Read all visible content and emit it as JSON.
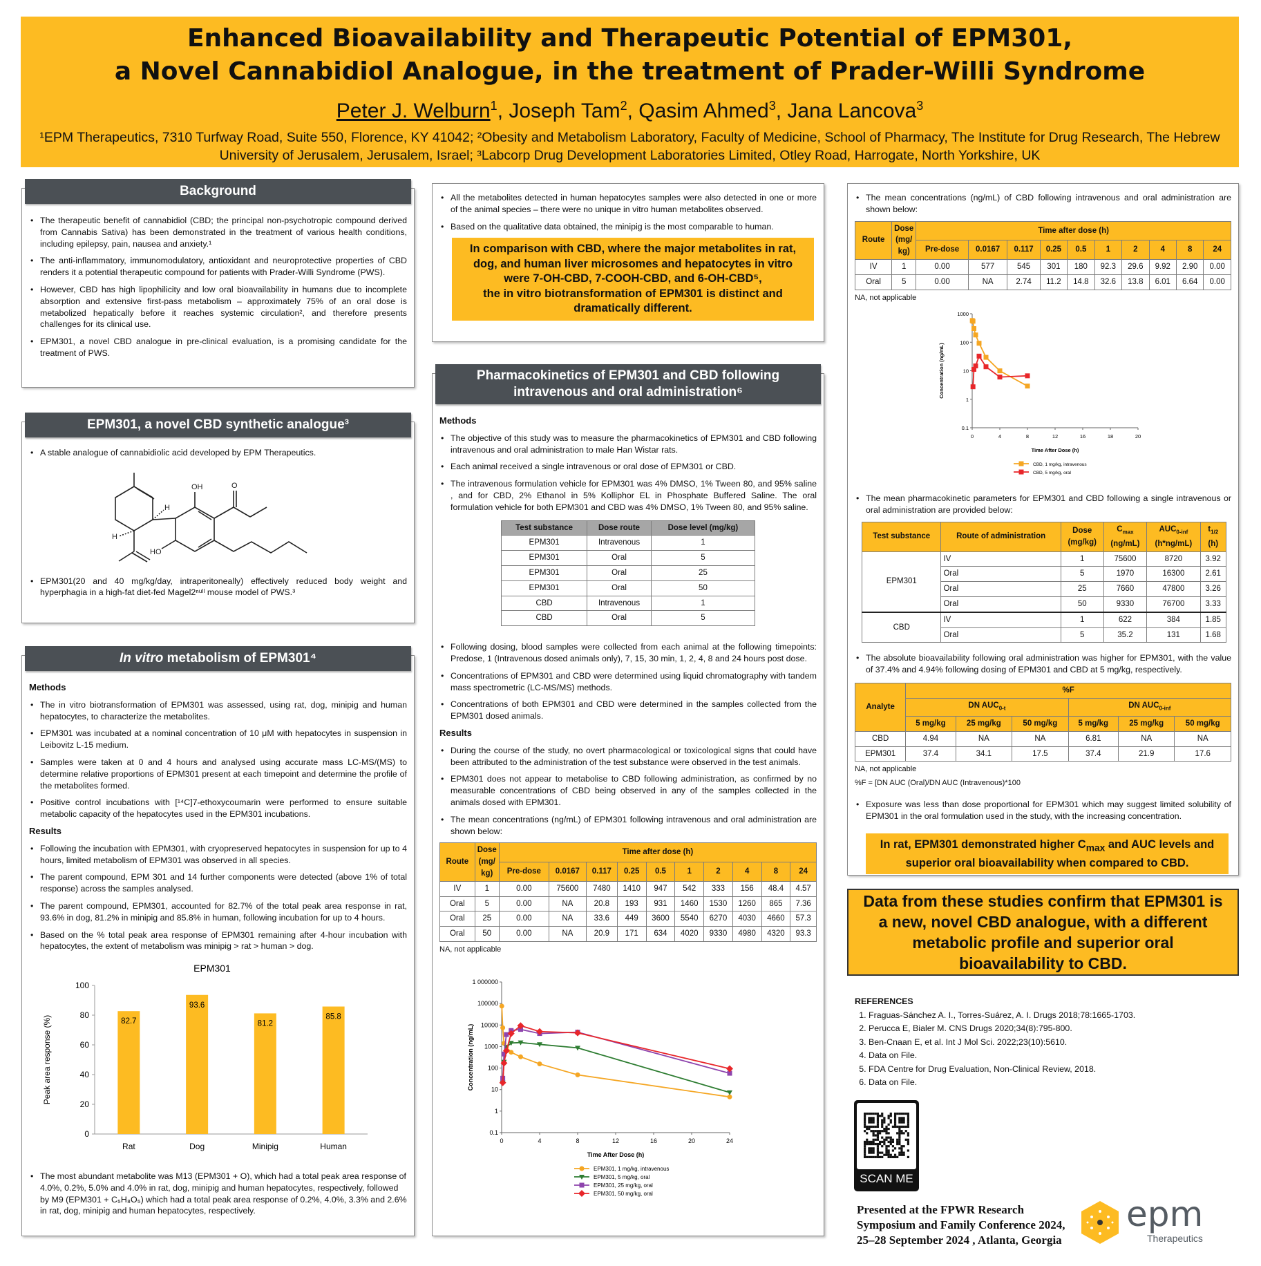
{
  "header": {
    "title_line1": "Enhanced Bioavailability and Therapeutic Potential of EPM301,",
    "title_line2": "a Novel Cannabidiol Analogue, in the treatment of Prader-Willi Syndrome",
    "authors": [
      {
        "name": "Peter J. Welburn",
        "sup": "1"
      },
      {
        "name": "Joseph Tam",
        "sup": "2"
      },
      {
        "name": "Qasim Ahmed",
        "sup": "3"
      },
      {
        "name": "Jana Lancova",
        "sup": "3"
      }
    ],
    "affiliations": "¹EPM Therapeutics, 7310 Turfway Road, Suite 550, Florence, KY 41042; ²Obesity and Metabolism Laboratory, Faculty of Medicine, School of Pharmacy, The Institute for Drug Research, The Hebrew University of Jerusalem, Jerusalem, Israel; ³Labcorp Drug Development Laboratories Limited, Otley Road, Harrogate, North Yorkshire, UK"
  },
  "background": {
    "heading": "Background",
    "bullets": [
      "The therapeutic benefit of cannabidiol (CBD; the principal non-psychotropic compound derived from Cannabis Sativa) has been demonstrated in the treatment of various health conditions, including epilepsy, pain, nausea and anxiety.¹",
      "The anti-inflammatory, immunomodulatory, antioxidant and neuroprotective properties of CBD renders it a potential therapeutic compound for patients with Prader-Willi Syndrome (PWS).",
      "However, CBD has high lipophilicity and low oral bioavailability in humans due to incomplete absorption and extensive first-pass metabolism – approximately 75% of an oral dose is metabolized hepatically before it reaches systemic circulation², and therefore presents challenges for its clinical use.",
      "EPM301, a novel CBD analogue in pre-clinical evaluation, is a promising candidate for the treatment of PWS."
    ]
  },
  "analogue": {
    "heading": "EPM301, a novel CBD synthetic analogue³",
    "bullet1": "A stable analogue of cannabidiolic acid developed by EPM Therapeutics.",
    "bullet2": "EPM301(20 and 40 mg/kg/day, intraperitoneally) effectively reduced body weight and hyperphagia in a high-fat diet-fed Magel2ⁿᵘˡˡ mouse model of PWS.³",
    "structure_labels": {
      "oh": "OH",
      "ho": "HO",
      "h1": "H",
      "h2": "H",
      "o": "O"
    }
  },
  "invitro": {
    "heading_italic": "In vitro",
    "heading_rest": " metabolism of EPM301⁴",
    "methods_label": "Methods",
    "methods": [
      "The in vitro biotransformation of EPM301 was assessed, using rat, dog, minipig and human hepatocytes, to characterize the metabolites.",
      "EPM301 was incubated at a nominal concentration of 10 μM with hepatocytes in suspension in Leibovitz L-15 medium.",
      "Samples were taken at 0 and 4 hours and analysed using accurate mass LC-MS/(MS) to determine relative proportions of EPM301 present at each timepoint and determine the profile of the metabolites formed.",
      "Positive control incubations with [¹⁴C]7-ethoxycoumarin were performed to ensure suitable metabolic capacity of the hepatocytes used in the EPM301 incubations."
    ],
    "results_label": "Results",
    "results": [
      "Following the incubation with EPM301, with cryopreserved hepatocytes in suspension for up to 4 hours, limited metabolism of EPM301 was observed in all species.",
      "The parent compound, EPM 301 and 14 further components were detected (above 1% of total response) across the samples analysed.",
      "The parent compound, EPM301, accounted for 82.7% of the total peak area response in rat, 93.6% in dog, 81.2% in minipig and 85.8% in human, following incubation for up to 4 hours.",
      "Based on the % total peak area response of EPM301 remaining after 4-hour incubation with hepatocytes, the extent of metabolism was minipig > rat > human > dog."
    ],
    "after_chart": "The most abundant metabolite was M13 (EPM301 + O), which had a total peak area response of 4.0%, 0.2%, 5.0% and 4.0% in rat, dog, minipig and human hepatocytes, respectively, followed by M9 (EPM301 + C₅H₈O₅) which had a total peak area response of 0.2%, 4.0%, 3.3% and 2.6% in rat, dog, minipig and human hepatocytes, respectively."
  },
  "middle_top": {
    "bullets": [
      "All the metabolites detected in human hepatocytes samples were also detected in one or more of the animal species – there were no unique in vitro human metabolites observed.",
      "Based on the qualitative data obtained, the minipig is the most comparable to human."
    ],
    "callout": [
      "In comparison with CBD, where the major metabolites in rat,",
      "dog, and human liver microsomes and hepatocytes in vitro",
      "were 7-OH-CBD, 7-COOH-CBD, and 6-OH-CBD⁵,",
      "the in vitro biotransformation of EPM301 is distinct and",
      "dramatically different."
    ]
  },
  "pk": {
    "heading_line1": "Pharmacokinetics of EPM301 and CBD following",
    "heading_line2": "intravenous and oral administration⁶",
    "methods_label": "Methods",
    "methods": [
      "The objective of this study was to measure the pharmacokinetics of EPM301 and CBD following intravenous and oral administration to male Han Wistar rats.",
      "Each animal received a single intravenous or oral dose of EPM301 or CBD.",
      "The intravenous formulation vehicle for EPM301 was 4% DMSO, 1% Tween 80, and 95% saline , and for CBD, 2% Ethanol in 5% Kolliphor EL in Phosphate Buffered Saline. The oral formulation vehicle for both EPM301 and CBD was 4% DMSO, 1% Tween 80, and 95% saline."
    ],
    "dose_table": {
      "headers": [
        "Test substance",
        "Dose route",
        "Dose level (mg/kg)"
      ],
      "rows": [
        [
          "EPM301",
          "Intravenous",
          "1"
        ],
        [
          "EPM301",
          "Oral",
          "5"
        ],
        [
          "EPM301",
          "Oral",
          "25"
        ],
        [
          "EPM301",
          "Oral",
          "50"
        ],
        [
          "CBD",
          "Intravenous",
          "1"
        ],
        [
          "CBD",
          "Oral",
          "5"
        ]
      ]
    },
    "methods2": [
      "Following dosing, blood samples were collected from each animal at the following timepoints: Predose, 1 (Intravenous dosed animals only), 7, 15, 30 min, 1, 2, 4, 8 and 24 hours post dose.",
      "Concentrations of EPM301 and CBD were determined using liquid chromatography with tandem mass spectrometric (LC-MS/MS) methods.",
      "Concentrations of both EPM301 and CBD were determined in the samples collected from the EPM301 dosed animals."
    ],
    "results_label": "Results",
    "results": [
      "During the course of the study, no overt pharmacological or toxicological signs that could have been attributed to the administration of the test substance were observed in the test animals.",
      "EPM301 does not appear to metabolise to CBD following administration, as confirmed by no measurable concentrations of CBD being observed in any of the samples collected in the animals dosed with EPM301.",
      "The mean concentrations (ng/mL) of EPM301 following intravenous and oral administration are shown below:"
    ],
    "epm_conc_table": {
      "h_route": "Route",
      "h_dose": "Dose (mg/ kg)",
      "h_time": "Time after dose (h)",
      "times": [
        "Pre-dose",
        "0.0167",
        "0.117",
        "0.25",
        "0.5",
        "1",
        "2",
        "4",
        "8",
        "24"
      ],
      "rows": [
        [
          "IV",
          "1",
          "0.00",
          "75600",
          "7480",
          "1410",
          "947",
          "542",
          "333",
          "156",
          "48.4",
          "4.57"
        ],
        [
          "Oral",
          "5",
          "0.00",
          "NA",
          "20.8",
          "193",
          "931",
          "1460",
          "1530",
          "1260",
          "865",
          "7.36"
        ],
        [
          "Oral",
          "25",
          "0.00",
          "NA",
          "33.6",
          "449",
          "3600",
          "5540",
          "6270",
          "4030",
          "4660",
          "57.3"
        ],
        [
          "Oral",
          "50",
          "0.00",
          "NA",
          "20.9",
          "171",
          "634",
          "4020",
          "9330",
          "4980",
          "4320",
          "93.3"
        ]
      ],
      "note": "NA, not applicable"
    }
  },
  "right": {
    "intro": "The mean concentrations (ng/mL) of CBD following intravenous and oral administration are shown below:",
    "cbd_conc_table": {
      "h_route": "Route",
      "h_dose": "Dose (mg/ kg)",
      "h_time": "Time after dose (h)",
      "times": [
        "Pre-dose",
        "0.0167",
        "0.117",
        "0.25",
        "0.5",
        "1",
        "2",
        "4",
        "8",
        "24"
      ],
      "rows": [
        [
          "IV",
          "1",
          "0.00",
          "577",
          "545",
          "301",
          "180",
          "92.3",
          "29.6",
          "9.92",
          "2.90",
          "0.00"
        ],
        [
          "Oral",
          "5",
          "0.00",
          "NA",
          "2.74",
          "11.2",
          "14.8",
          "32.6",
          "13.8",
          "6.01",
          "6.64",
          "0.00"
        ]
      ],
      "note": "NA, not applicable"
    },
    "param_intro": "The mean pharmacokinetic parameters for EPM301 and CBD following a single intravenous or oral administration are provided below:",
    "param_table": {
      "headers": [
        {
          "t": "Test substance"
        },
        {
          "t": "Route of administration"
        },
        {
          "t": "Dose",
          "u": "(mg/kg)"
        },
        {
          "t": "C",
          "sub": "max",
          "u": "(ng/mL)"
        },
        {
          "t": "AUC",
          "sub": "0-inf",
          "u": "(h*ng/mL)"
        },
        {
          "t": "t",
          "sub": "1/2",
          "u": "(h)"
        }
      ],
      "groups": [
        {
          "substance": "EPM301",
          "rows": [
            [
              "IV",
              "1",
              "75600",
              "8720",
              "3.92"
            ],
            [
              "Oral",
              "5",
              "1970",
              "16300",
              "2.61"
            ],
            [
              "Oral",
              "25",
              "7660",
              "47800",
              "3.26"
            ],
            [
              "Oral",
              "50",
              "9330",
              "76700",
              "3.33"
            ]
          ]
        },
        {
          "substance": "CBD",
          "rows": [
            [
              "IV",
              "1",
              "622",
              "384",
              "1.85"
            ],
            [
              "Oral",
              "5",
              "35.2",
              "131",
              "1.68"
            ]
          ]
        }
      ]
    },
    "bioavail_text": "The absolute bioavailability following oral administration was higher for EPM301, with the value of 37.4% and 4.94% following dosing of EPM301 and CBD at 5 mg/kg, respectively.",
    "f_table": {
      "h_analyte": "Analyte",
      "h_f": "%F",
      "h_dn_t": "DN AUC",
      "h_dn_t_sub": "0-t",
      "h_dn_inf": "DN AUC",
      "h_dn_inf_sub": "0-inf",
      "doses": [
        "5 mg/kg",
        "25 mg/kg",
        "50 mg/kg",
        "5 mg/kg",
        "25 mg/kg",
        "50 mg/kg"
      ],
      "rows": [
        [
          "CBD",
          "4.94",
          "NA",
          "NA",
          "6.81",
          "NA",
          "NA"
        ],
        [
          "EPM301",
          "37.4",
          "34.1",
          "17.5",
          "37.4",
          "21.9",
          "17.6"
        ]
      ],
      "note1": "NA, not applicable",
      "note2": "%F = [DN AUC (Oral)/DN AUC (Intravenous)*100"
    },
    "exposure_text": "Exposure was less than dose proportional for EPM301 which may suggest limited solubility of EPM301 in the oral formulation used in the study, with the increasing concentration.",
    "callout_a": "In rat, EPM301 demonstrated higher C",
    "callout_sub": "max",
    "callout_b": " and AUC levels and superior oral bioavailability when compared to CBD."
  },
  "conclusion": "Data from these studies confirm that EPM301 is a new, novel CBD analogue, with a different metabolic profile and superior oral bioavailability to CBD.",
  "references": {
    "heading": "REFERENCES",
    "items": [
      "Fraguas-Sánchez A. I., Torres-Suárez, A. I. Drugs 2018;78:1665-1703.",
      "Perucca E, Bialer M. CNS Drugs 2020;34(8):795-800.",
      "Ben-Cnaan E, et al. Int J Mol Sci. 2022;23(10):5610.",
      "Data on File.",
      "FDA Centre for Drug Evaluation, Non-Clinical Review, 2018.",
      "Data on File."
    ]
  },
  "qr": {
    "label": "SCAN ME"
  },
  "presented": [
    "Presented at the FPWR Research",
    "Symposium and Family Conference 2024,",
    "25–28 September 2024 , Atlanta, Georgia"
  ],
  "logo": {
    "word": "epm",
    "sub": "Therapeutics"
  },
  "colors": {
    "accent": "#fdbb22",
    "section_header": "#4b5055",
    "iv": "#f5a623",
    "oral5": "#2e7d32",
    "oral25": "#8e44ad",
    "oral50": "#e8262a",
    "cbd_oral": "#e8262a"
  },
  "chart_data": [
    {
      "type": "bar",
      "title": "EPM301",
      "categories": [
        "Rat",
        "Dog",
        "Minipig",
        "Human"
      ],
      "values": [
        82.7,
        93.6,
        81.2,
        85.8
      ],
      "data_labels": [
        "82.7",
        "93.6",
        "81.2",
        "85.8"
      ],
      "ylabel": "Peak area response (%)",
      "xlabel": "",
      "ylim": [
        0,
        100
      ],
      "yticks": [
        "0",
        "20",
        "40",
        "60",
        "80",
        "100"
      ],
      "color": "#fdbb22"
    },
    {
      "type": "line",
      "yscale": "log",
      "xlabel": "Time After Dose (h)",
      "ylabel": "Concentration (ng/mL)",
      "ylim": [
        0.1,
        1000000
      ],
      "yticks": [
        "0.1",
        "1",
        "10",
        "100",
        "1000",
        "10000",
        "100000",
        "1 000000"
      ],
      "xlim": [
        0,
        24
      ],
      "xticks": [
        "0",
        "4",
        "8",
        "12",
        "16",
        "20",
        "24"
      ],
      "legend": "bottom",
      "x": [
        0.0167,
        0.117,
        0.25,
        0.5,
        1,
        2,
        4,
        8,
        24
      ],
      "series": [
        {
          "name": "EPM301, 1 mg/kg, intravenous",
          "color": "#f5a623",
          "marker": "circle",
          "values": [
            75600,
            7480,
            1410,
            947,
            542,
            333,
            156,
            48.4,
            4.57
          ]
        },
        {
          "name": "EPM301, 5 mg/kg, oral",
          "color": "#2e7d32",
          "marker": "triangle",
          "values": [
            null,
            20.8,
            193,
            931,
            1460,
            1530,
            1260,
            865,
            7.36
          ]
        },
        {
          "name": "EPM301, 25 mg/kg, oral",
          "color": "#8e44ad",
          "marker": "square",
          "values": [
            null,
            33.6,
            449,
            3600,
            5540,
            6270,
            4030,
            4660,
            57.3
          ]
        },
        {
          "name": "EPM301, 50 mg/kg, oral",
          "color": "#e8262a",
          "marker": "diamond",
          "values": [
            null,
            20.9,
            171,
            634,
            4020,
            9330,
            4980,
            4320,
            93.3
          ]
        }
      ]
    },
    {
      "type": "line",
      "yscale": "log",
      "xlabel": "Time After Dose (h)",
      "ylabel": "Concentration (ng/mL)",
      "ylim": [
        0.1,
        1000
      ],
      "yticks": [
        "0.1",
        "1",
        "10",
        "100",
        "1000"
      ],
      "xlim": [
        0,
        24
      ],
      "xticks": [
        "0",
        "4",
        "8",
        "12",
        "16",
        "18",
        "20"
      ],
      "legend": "bottom",
      "x": [
        0.0167,
        0.117,
        0.25,
        0.5,
        1,
        2,
        4,
        8
      ],
      "series": [
        {
          "name": "CBD, 1 mg/kg, intravenous",
          "color": "#f5a623",
          "marker": "square",
          "values": [
            577,
            545,
            301,
            180,
            92.3,
            29.6,
            9.92,
            2.9
          ]
        },
        {
          "name": "CBD, 5 mg/kg, oral",
          "color": "#e8262a",
          "marker": "square",
          "values": [
            null,
            2.74,
            11.2,
            14.8,
            32.6,
            13.8,
            6.01,
            6.64
          ]
        }
      ]
    }
  ]
}
